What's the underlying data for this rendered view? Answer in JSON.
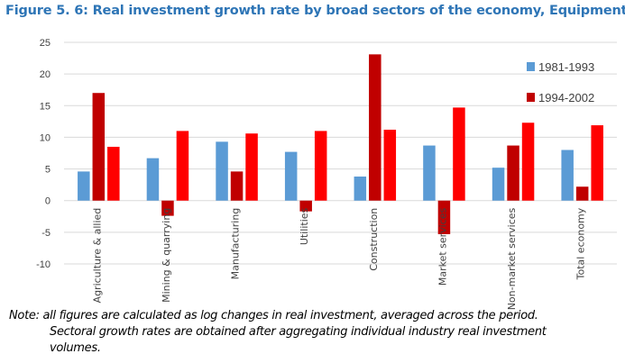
{
  "title": "Figure 5. 6: Real investment growth rate by broad sectors of the economy, Equipment",
  "note": {
    "line1": "Note: all figures are calculated as log changes in real investment, averaged across the period.",
    "line2": "Sectoral growth rates are obtained after aggregating individual industry real investment",
    "line3": "volumes."
  },
  "chart_data": {
    "type": "bar",
    "title": "Figure 5. 6: Real investment growth rate by broad sectors of the economy, Equipment",
    "categories": [
      "Agriculture & allied",
      "Mining & quarrying",
      "Manufacturing",
      "Utilities",
      "Construction",
      "Market services",
      "Non-market services",
      "Total economy"
    ],
    "series": [
      {
        "name": "1981-1993",
        "color": "#5B9BD5",
        "values": [
          4.6,
          6.7,
          9.3,
          7.7,
          3.8,
          8.7,
          5.2,
          8.0
        ]
      },
      {
        "name": "1994-2002",
        "color": "#C00000",
        "values": [
          17.0,
          -2.4,
          4.6,
          -1.7,
          23.1,
          -5.3,
          8.7,
          2.2
        ]
      },
      {
        "color": "#FF0000",
        "values": [
          8.5,
          11.0,
          10.6,
          11.0,
          11.2,
          14.7,
          12.3,
          11.9
        ]
      }
    ],
    "yticks": [
      25,
      20,
      15,
      10,
      5,
      0,
      -5,
      -10
    ],
    "ylim": [
      -10,
      25
    ],
    "grid": true,
    "legend": "top-right"
  }
}
